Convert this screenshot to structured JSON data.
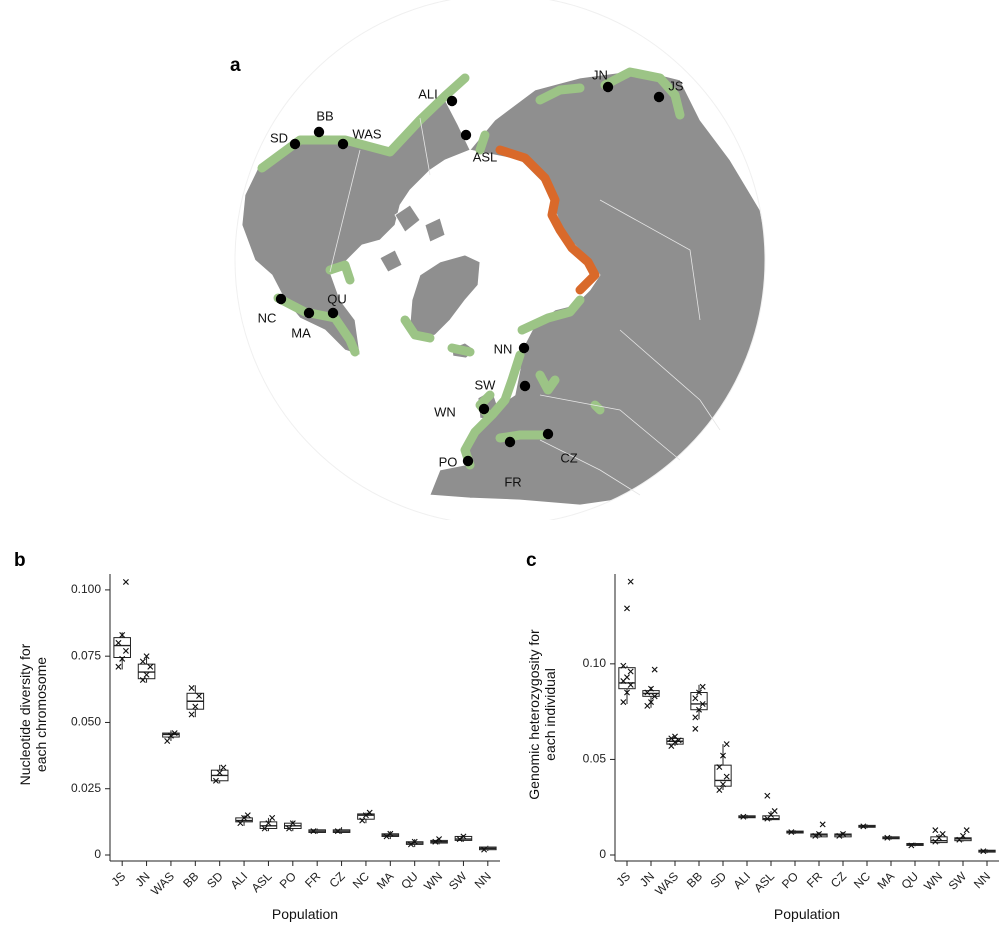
{
  "panels": {
    "a": "a",
    "b": "b",
    "c": "c"
  },
  "map": {
    "sites": [
      {
        "code": "JN"
      },
      {
        "code": "JS"
      },
      {
        "code": "ALI"
      },
      {
        "code": "ASL"
      },
      {
        "code": "SD"
      },
      {
        "code": "BB"
      },
      {
        "code": "WAS"
      },
      {
        "code": "NC"
      },
      {
        "code": "MA"
      },
      {
        "code": "QU"
      },
      {
        "code": "NN"
      },
      {
        "code": "SW"
      },
      {
        "code": "WN"
      },
      {
        "code": "PO"
      },
      {
        "code": "FR"
      },
      {
        "code": "CZ"
      }
    ],
    "colors": {
      "land": "#8f8f8f",
      "ocean": "#ffffff",
      "range": "#9cc486",
      "contact_zone": "#d9692a",
      "site": "#000000"
    }
  },
  "chart_data": [
    {
      "type": "box",
      "panel": "b",
      "categories": [
        "JS",
        "JN",
        "WAS",
        "BB",
        "SD",
        "ALI",
        "ASL",
        "PO",
        "FR",
        "CZ",
        "NC",
        "MA",
        "QU",
        "WN",
        "SW",
        "NN"
      ],
      "series": [
        {
          "values": [
            {
              "q1": 0.0745,
              "median": 0.079,
              "q3": 0.082,
              "min": 0.07,
              "max": 0.084,
              "outliers": [
                0.103
              ],
              "points": [
                0.071,
                0.074,
                0.077,
                0.08,
                0.083
              ]
            },
            {
              "q1": 0.0665,
              "median": 0.069,
              "q3": 0.072,
              "min": 0.065,
              "max": 0.075,
              "outliers": [],
              "points": [
                0.066,
                0.068,
                0.071,
                0.073,
                0.075
              ]
            },
            {
              "q1": 0.0445,
              "median": 0.0455,
              "q3": 0.046,
              "min": 0.043,
              "max": 0.047,
              "outliers": [],
              "points": [
                0.043,
                0.045,
                0.046
              ]
            },
            {
              "q1": 0.055,
              "median": 0.058,
              "q3": 0.061,
              "min": 0.052,
              "max": 0.064,
              "outliers": [],
              "points": [
                0.053,
                0.056,
                0.06,
                0.063
              ]
            },
            {
              "q1": 0.028,
              "median": 0.03,
              "q3": 0.032,
              "min": 0.027,
              "max": 0.034,
              "outliers": [],
              "points": [
                0.028,
                0.031,
                0.033
              ]
            },
            {
              "q1": 0.0125,
              "median": 0.013,
              "q3": 0.014,
              "min": 0.011,
              "max": 0.015,
              "outliers": [],
              "points": [
                0.012,
                0.014,
                0.015
              ]
            },
            {
              "q1": 0.01,
              "median": 0.011,
              "q3": 0.0125,
              "min": 0.009,
              "max": 0.014,
              "outliers": [],
              "points": [
                0.01,
                0.012,
                0.014
              ]
            },
            {
              "q1": 0.01,
              "median": 0.011,
              "q3": 0.012,
              "min": 0.009,
              "max": 0.013,
              "outliers": [],
              "points": [
                0.01,
                0.012
              ]
            },
            {
              "q1": 0.0085,
              "median": 0.009,
              "q3": 0.0095,
              "min": 0.008,
              "max": 0.01,
              "outliers": [],
              "points": [
                0.009
              ]
            },
            {
              "q1": 0.0085,
              "median": 0.009,
              "q3": 0.0095,
              "min": 0.008,
              "max": 0.0105,
              "outliers": [],
              "points": [
                0.009
              ]
            },
            {
              "q1": 0.0135,
              "median": 0.015,
              "q3": 0.0155,
              "min": 0.012,
              "max": 0.016,
              "outliers": [],
              "points": [
                0.013,
                0.015,
                0.016
              ]
            },
            {
              "q1": 0.007,
              "median": 0.0075,
              "q3": 0.008,
              "min": 0.006,
              "max": 0.009,
              "outliers": [],
              "points": [
                0.007,
                0.008
              ]
            },
            {
              "q1": 0.004,
              "median": 0.0045,
              "q3": 0.005,
              "min": 0.003,
              "max": 0.006,
              "outliers": [],
              "points": [
                0.004,
                0.005
              ]
            },
            {
              "q1": 0.0045,
              "median": 0.005,
              "q3": 0.0055,
              "min": 0.004,
              "max": 0.0065,
              "outliers": [],
              "points": [
                0.005,
                0.006
              ]
            },
            {
              "q1": 0.0055,
              "median": 0.006,
              "q3": 0.007,
              "min": 0.005,
              "max": 0.0075,
              "outliers": [],
              "points": [
                0.006,
                0.007
              ]
            },
            {
              "q1": 0.002,
              "median": 0.0025,
              "q3": 0.003,
              "min": 0.0015,
              "max": 0.0035,
              "outliers": [],
              "points": [
                0.002
              ]
            }
          ]
        }
      ],
      "xlabel": "Population",
      "ylabel": "Nucleotide diversity for each chromosome",
      "ylim": [
        0,
        0.106
      ],
      "yticks": [
        0,
        0.025,
        0.05,
        0.075,
        0.1
      ],
      "ytick_labels": [
        "0",
        "0.025",
        "0.050",
        "0.075",
        "0.100"
      ],
      "grid": false
    },
    {
      "type": "box",
      "panel": "c",
      "categories": [
        "JS",
        "JN",
        "WAS",
        "BB",
        "SD",
        "ALI",
        "ASL",
        "PO",
        "FR",
        "CZ",
        "NC",
        "MA",
        "QU",
        "WN",
        "SW",
        "NN"
      ],
      "series": [
        {
          "values": [
            {
              "q1": 0.087,
              "median": 0.09,
              "q3": 0.098,
              "min": 0.079,
              "max": 0.099,
              "outliers": [
                0.129,
                0.143
              ],
              "points": [
                0.08,
                0.085,
                0.089,
                0.091,
                0.093,
                0.096,
                0.099
              ]
            },
            {
              "q1": 0.083,
              "median": 0.0845,
              "q3": 0.086,
              "min": 0.077,
              "max": 0.088,
              "outliers": [
                0.097
              ],
              "points": [
                0.078,
                0.08,
                0.083,
                0.085,
                0.087
              ]
            },
            {
              "q1": 0.058,
              "median": 0.0595,
              "q3": 0.061,
              "min": 0.057,
              "max": 0.062,
              "outliers": [],
              "points": [
                0.057,
                0.059,
                0.06,
                0.061,
                0.062
              ]
            },
            {
              "q1": 0.076,
              "median": 0.079,
              "q3": 0.085,
              "min": 0.071,
              "max": 0.089,
              "outliers": [
                0.066
              ],
              "points": [
                0.072,
                0.076,
                0.079,
                0.082,
                0.085,
                0.088
              ]
            },
            {
              "q1": 0.036,
              "median": 0.039,
              "q3": 0.047,
              "min": 0.034,
              "max": 0.058,
              "outliers": [],
              "points": [
                0.034,
                0.037,
                0.041,
                0.046,
                0.052,
                0.058
              ]
            },
            {
              "q1": 0.0195,
              "median": 0.02,
              "q3": 0.0205,
              "min": 0.019,
              "max": 0.021,
              "outliers": [],
              "points": [
                0.02
              ]
            },
            {
              "q1": 0.0185,
              "median": 0.019,
              "q3": 0.0205,
              "min": 0.018,
              "max": 0.023,
              "outliers": [
                0.031
              ],
              "points": [
                0.019,
                0.021,
                0.023
              ]
            },
            {
              "q1": 0.0115,
              "median": 0.012,
              "q3": 0.0125,
              "min": 0.011,
              "max": 0.013,
              "outliers": [],
              "points": [
                0.012
              ]
            },
            {
              "q1": 0.0095,
              "median": 0.0105,
              "q3": 0.011,
              "min": 0.009,
              "max": 0.012,
              "outliers": [
                0.016
              ],
              "points": [
                0.01,
                0.011
              ]
            },
            {
              "q1": 0.0095,
              "median": 0.0105,
              "q3": 0.011,
              "min": 0.009,
              "max": 0.012,
              "outliers": [],
              "points": [
                0.01,
                0.011
              ]
            },
            {
              "q1": 0.0145,
              "median": 0.015,
              "q3": 0.0155,
              "min": 0.014,
              "max": 0.016,
              "outliers": [],
              "points": [
                0.015
              ]
            },
            {
              "q1": 0.0085,
              "median": 0.009,
              "q3": 0.0095,
              "min": 0.008,
              "max": 0.01,
              "outliers": [],
              "points": [
                0.009
              ]
            },
            {
              "q1": 0.005,
              "median": 0.0055,
              "q3": 0.006,
              "min": 0.0045,
              "max": 0.0065,
              "outliers": [],
              "points": [
                0.005
              ]
            },
            {
              "q1": 0.0065,
              "median": 0.0075,
              "q3": 0.0095,
              "min": 0.006,
              "max": 0.011,
              "outliers": [
                0.013
              ],
              "points": [
                0.007,
                0.009,
                0.011
              ]
            },
            {
              "q1": 0.0075,
              "median": 0.0085,
              "q3": 0.009,
              "min": 0.007,
              "max": 0.0105,
              "outliers": [
                0.013
              ],
              "points": [
                0.008,
                0.01
              ]
            },
            {
              "q1": 0.0015,
              "median": 0.002,
              "q3": 0.0025,
              "min": 0.001,
              "max": 0.003,
              "outliers": [],
              "points": [
                0.002
              ]
            }
          ]
        }
      ],
      "xlabel": "Population",
      "ylabel": "Genomic heterozygosity for each individual",
      "ylim": [
        0,
        0.147
      ],
      "yticks": [
        0,
        0.05,
        0.1
      ],
      "ytick_labels": [
        "0",
        "0.05",
        "0.10"
      ],
      "grid": false
    }
  ]
}
